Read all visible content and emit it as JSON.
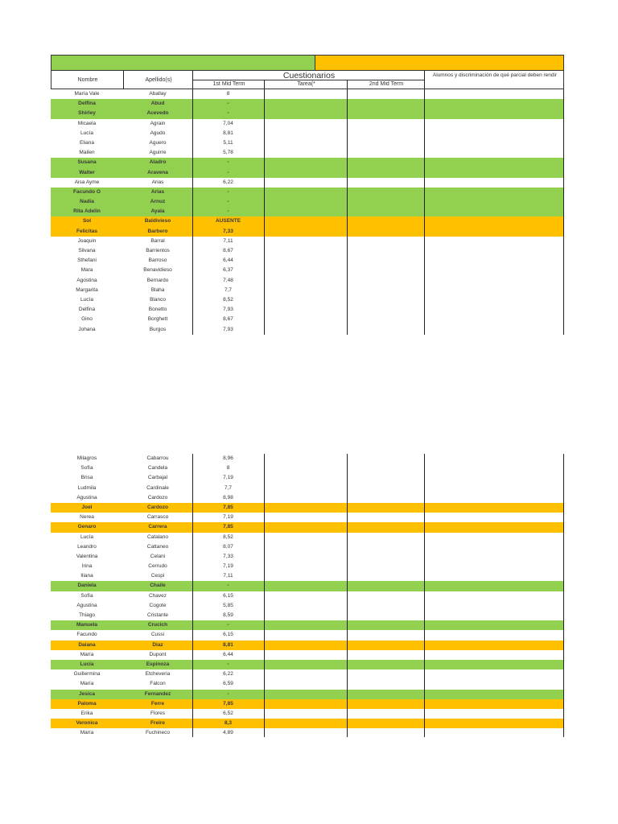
{
  "colors": {
    "green": "#92d050",
    "orange": "#ffc000",
    "border": "#222222"
  },
  "header": {
    "nombre": "Nombre",
    "apellidos": "Apellido(s)",
    "group": "Cuestionarios",
    "mid1": "1st Mid Term",
    "tarea": "Tarea(*",
    "mid2": "2nd Mid Term",
    "notes": "Alumnos y discriminación de qué parcial deben rendir"
  },
  "section1": [
    {
      "nombre": "María Vale",
      "apellido": "Aballay",
      "mid1": "8",
      "status": "none"
    },
    {
      "nombre": "Delfina",
      "apellido": "Abud",
      "mid1": "-",
      "status": "green"
    },
    {
      "nombre": "Shirley",
      "apellido": "Acevedo",
      "mid1": "-",
      "status": "green"
    },
    {
      "nombre": "Micaela",
      "apellido": "Agrain",
      "mid1": "7,04",
      "status": "none"
    },
    {
      "nombre": "Lucía",
      "apellido": "Agudo",
      "mid1": "8,81",
      "status": "none"
    },
    {
      "nombre": "Eliana",
      "apellido": "Aguero",
      "mid1": "5,11",
      "status": "none"
    },
    {
      "nombre": "Mailen",
      "apellido": "Aguirre",
      "mid1": "5,78",
      "status": "none"
    },
    {
      "nombre": "Susana",
      "apellido": "Aladro",
      "mid1": "-",
      "status": "green"
    },
    {
      "nombre": "Walter",
      "apellido": "Aravena",
      "mid1": "-",
      "status": "green"
    },
    {
      "nombre": "Aisa Ayme",
      "apellido": "Arias",
      "mid1": "6,22",
      "status": "none"
    },
    {
      "nombre": "Facundo O",
      "apellido": "Arias",
      "mid1": "-",
      "status": "green"
    },
    {
      "nombre": "Nadia",
      "apellido": "Arnuz",
      "mid1": "-",
      "status": "green"
    },
    {
      "nombre": "Rita Adelin",
      "apellido": "Ayala",
      "mid1": "-",
      "status": "green"
    },
    {
      "nombre": "Sol",
      "apellido": "Baldivieso",
      "mid1": "AUSENTE",
      "status": "orange"
    },
    {
      "nombre": "Felicitas",
      "apellido": "Barbero",
      "mid1": "7,33",
      "status": "orange"
    },
    {
      "nombre": "Joaquin",
      "apellido": "Barral",
      "mid1": "7,11",
      "status": "none"
    },
    {
      "nombre": "Silvana",
      "apellido": "Barrientos",
      "mid1": "8,67",
      "status": "none"
    },
    {
      "nombre": "Sthefani",
      "apellido": "Barroso",
      "mid1": "6,44",
      "status": "none"
    },
    {
      "nombre": "Mara",
      "apellido": "Benavidieso",
      "mid1": "6,37",
      "status": "none"
    },
    {
      "nombre": "Agostina",
      "apellido": "Bernardo",
      "mid1": "7,48",
      "status": "none"
    },
    {
      "nombre": "Margarita",
      "apellido": "Blaha",
      "mid1": "7,7",
      "status": "none"
    },
    {
      "nombre": "Lucía",
      "apellido": "Blanco",
      "mid1": "8,52",
      "status": "none"
    },
    {
      "nombre": "Delfina",
      "apellido": "Bonetto",
      "mid1": "7,93",
      "status": "none"
    },
    {
      "nombre": "Gino",
      "apellido": "Borghett",
      "mid1": "8,67",
      "status": "none"
    },
    {
      "nombre": "Johana",
      "apellido": "Burgos",
      "mid1": "7,93",
      "status": "none"
    }
  ],
  "section2": [
    {
      "nombre": "Milagros",
      "apellido": "Cabarrou",
      "mid1": "8,96",
      "status": "none"
    },
    {
      "nombre": "Sofía",
      "apellido": "Candela",
      "mid1": "8",
      "status": "none"
    },
    {
      "nombre": "Brisa",
      "apellido": "Carbajal",
      "mid1": "7,19",
      "status": "none"
    },
    {
      "nombre": "Ludmila",
      "apellido": "Cardinale",
      "mid1": "7,7",
      "status": "none"
    },
    {
      "nombre": "Agustina",
      "apellido": "Cardozo",
      "mid1": "8,98",
      "status": "none"
    },
    {
      "nombre": "Joel",
      "apellido": "Cardozo",
      "mid1": "7,85",
      "status": "orange"
    },
    {
      "nombre": "Nerea",
      "apellido": "Carrasco",
      "mid1": "7,19",
      "status": "none"
    },
    {
      "nombre": "Genaro",
      "apellido": "Carrera",
      "mid1": "7,85",
      "status": "orange"
    },
    {
      "nombre": "Lucía",
      "apellido": "Catalano",
      "mid1": "8,52",
      "status": "none"
    },
    {
      "nombre": "Leandro",
      "apellido": "Cattaneo",
      "mid1": "8,07",
      "status": "none"
    },
    {
      "nombre": "Valentina",
      "apellido": "Celani",
      "mid1": "7,33",
      "status": "none"
    },
    {
      "nombre": "Irina",
      "apellido": "Cerrudo",
      "mid1": "7,19",
      "status": "none"
    },
    {
      "nombre": "Iliana",
      "apellido": "Cespi",
      "mid1": "7,11",
      "status": "none"
    },
    {
      "nombre": "Daniela",
      "apellido": "Chaile",
      "mid1": "-",
      "status": "green"
    },
    {
      "nombre": "Sofía",
      "apellido": "Chavez",
      "mid1": "6,15",
      "status": "none"
    },
    {
      "nombre": "Agustina",
      "apellido": "Cogote",
      "mid1": "5,85",
      "status": "none"
    },
    {
      "nombre": "Thiago",
      "apellido": "Cristante",
      "mid1": "8,59",
      "status": "none"
    },
    {
      "nombre": "Manuela",
      "apellido": "Crucich",
      "mid1": "-",
      "status": "green"
    },
    {
      "nombre": "Facundo",
      "apellido": "Cussi",
      "mid1": "6,15",
      "status": "none"
    },
    {
      "nombre": "Daiana",
      "apellido": "Diaz",
      "mid1": "8,81",
      "status": "orange"
    },
    {
      "nombre": "María",
      "apellido": "Dupont",
      "mid1": "6,44",
      "status": "none"
    },
    {
      "nombre": "Lucía",
      "apellido": "Espinoza",
      "mid1": "-",
      "status": "green"
    },
    {
      "nombre": "Guillermina",
      "apellido": "Etcheveria",
      "mid1": "6,22",
      "status": "none"
    },
    {
      "nombre": "María",
      "apellido": "Falcon",
      "mid1": "6,59",
      "status": "none"
    },
    {
      "nombre": "Jesica",
      "apellido": "Fernandez",
      "mid1": "-",
      "status": "green"
    },
    {
      "nombre": "Paloma",
      "apellido": "Ferre",
      "mid1": "7,85",
      "status": "orange"
    },
    {
      "nombre": "Erika",
      "apellido": "Flores",
      "mid1": "6,52",
      "status": "none"
    },
    {
      "nombre": "Veronica",
      "apellido": "Freire",
      "mid1": "8,3",
      "status": "orange"
    },
    {
      "nombre": "María",
      "apellido": "Fuchineco",
      "mid1": "4,89",
      "status": "none"
    }
  ]
}
